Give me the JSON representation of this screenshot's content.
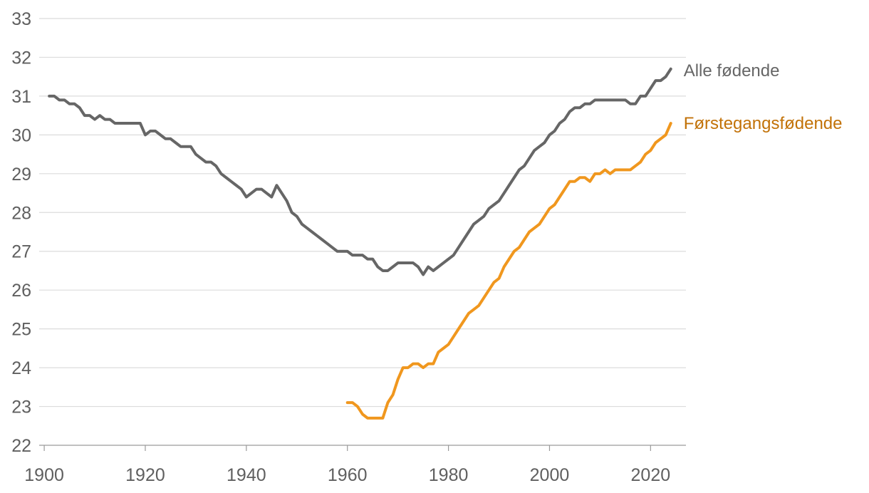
{
  "chart_data": {
    "type": "line",
    "title": "",
    "xlabel": "",
    "ylabel": "",
    "xlim": [
      1899,
      2027
    ],
    "ylim": [
      22,
      33
    ],
    "x_ticks": [
      1900,
      1920,
      1940,
      1960,
      1980,
      2000,
      2020
    ],
    "y_ticks": [
      22,
      23,
      24,
      25,
      26,
      27,
      28,
      29,
      30,
      31,
      32,
      33
    ],
    "grid": "horizontal",
    "legend": "inline labels at line ends (right)",
    "series": [
      {
        "name": "Alle fødende",
        "color": "#666666",
        "label_color": "#666666",
        "x": [
          1901,
          1902,
          1903,
          1904,
          1905,
          1906,
          1907,
          1908,
          1909,
          1910,
          1911,
          1912,
          1913,
          1914,
          1915,
          1916,
          1917,
          1918,
          1919,
          1920,
          1921,
          1922,
          1923,
          1924,
          1925,
          1926,
          1927,
          1928,
          1929,
          1930,
          1931,
          1932,
          1933,
          1934,
          1935,
          1936,
          1937,
          1938,
          1939,
          1940,
          1941,
          1942,
          1943,
          1944,
          1945,
          1946,
          1947,
          1948,
          1949,
          1950,
          1951,
          1952,
          1953,
          1954,
          1955,
          1956,
          1957,
          1958,
          1959,
          1960,
          1961,
          1962,
          1963,
          1964,
          1965,
          1966,
          1967,
          1968,
          1969,
          1970,
          1971,
          1972,
          1973,
          1974,
          1975,
          1976,
          1977,
          1978,
          1979,
          1980,
          1981,
          1982,
          1983,
          1984,
          1985,
          1986,
          1987,
          1988,
          1989,
          1990,
          1991,
          1992,
          1993,
          1994,
          1995,
          1996,
          1997,
          1998,
          1999,
          2000,
          2001,
          2002,
          2003,
          2004,
          2005,
          2006,
          2007,
          2008,
          2009,
          2010,
          2011,
          2012,
          2013,
          2014,
          2015,
          2016,
          2017,
          2018,
          2019,
          2020,
          2021,
          2022,
          2023,
          2024
        ],
        "y": [
          31.0,
          31.0,
          30.9,
          30.9,
          30.8,
          30.8,
          30.7,
          30.5,
          30.5,
          30.4,
          30.5,
          30.4,
          30.4,
          30.3,
          30.3,
          30.3,
          30.3,
          30.3,
          30.3,
          30.0,
          30.1,
          30.1,
          30.0,
          29.9,
          29.9,
          29.8,
          29.7,
          29.7,
          29.7,
          29.5,
          29.4,
          29.3,
          29.3,
          29.2,
          29.0,
          28.9,
          28.8,
          28.7,
          28.6,
          28.4,
          28.5,
          28.6,
          28.6,
          28.5,
          28.4,
          28.7,
          28.5,
          28.3,
          28.0,
          27.9,
          27.7,
          27.6,
          27.5,
          27.4,
          27.3,
          27.2,
          27.1,
          27.0,
          27.0,
          27.0,
          26.9,
          26.9,
          26.9,
          26.8,
          26.8,
          26.6,
          26.5,
          26.5,
          26.6,
          26.7,
          26.7,
          26.7,
          26.7,
          26.6,
          26.4,
          26.6,
          26.5,
          26.6,
          26.7,
          26.8,
          26.9,
          27.1,
          27.3,
          27.5,
          27.7,
          27.8,
          27.9,
          28.1,
          28.2,
          28.3,
          28.5,
          28.7,
          28.9,
          29.1,
          29.2,
          29.4,
          29.6,
          29.7,
          29.8,
          30.0,
          30.1,
          30.3,
          30.4,
          30.6,
          30.7,
          30.7,
          30.8,
          30.8,
          30.9,
          30.9,
          30.9,
          30.9,
          30.9,
          30.9,
          30.9,
          30.8,
          30.8,
          31.0,
          31.0,
          31.2,
          31.4,
          31.4,
          31.5,
          31.7
        ]
      },
      {
        "name": "Førstegangsfødende",
        "color": "#f0971e",
        "label_color": "#c27208",
        "x": [
          1960,
          1961,
          1962,
          1963,
          1964,
          1965,
          1966,
          1967,
          1968,
          1969,
          1970,
          1971,
          1972,
          1973,
          1974,
          1975,
          1976,
          1977,
          1978,
          1979,
          1980,
          1981,
          1982,
          1983,
          1984,
          1985,
          1986,
          1987,
          1988,
          1989,
          1990,
          1991,
          1992,
          1993,
          1994,
          1995,
          1996,
          1997,
          1998,
          1999,
          2000,
          2001,
          2002,
          2003,
          2004,
          2005,
          2006,
          2007,
          2008,
          2009,
          2010,
          2011,
          2012,
          2013,
          2014,
          2015,
          2016,
          2017,
          2018,
          2019,
          2020,
          2021,
          2022,
          2023,
          2024
        ],
        "y": [
          23.1,
          23.1,
          23.0,
          22.8,
          22.7,
          22.7,
          22.7,
          22.7,
          23.1,
          23.3,
          23.7,
          24.0,
          24.0,
          24.1,
          24.1,
          24.0,
          24.1,
          24.1,
          24.4,
          24.5,
          24.6,
          24.8,
          25.0,
          25.2,
          25.4,
          25.5,
          25.6,
          25.8,
          26.0,
          26.2,
          26.3,
          26.6,
          26.8,
          27.0,
          27.1,
          27.3,
          27.5,
          27.6,
          27.7,
          27.9,
          28.1,
          28.2,
          28.4,
          28.6,
          28.8,
          28.8,
          28.9,
          28.9,
          28.8,
          29.0,
          29.0,
          29.1,
          29.0,
          29.1,
          29.1,
          29.1,
          29.1,
          29.2,
          29.3,
          29.5,
          29.6,
          29.8,
          29.9,
          30.0,
          30.3
        ]
      }
    ]
  }
}
